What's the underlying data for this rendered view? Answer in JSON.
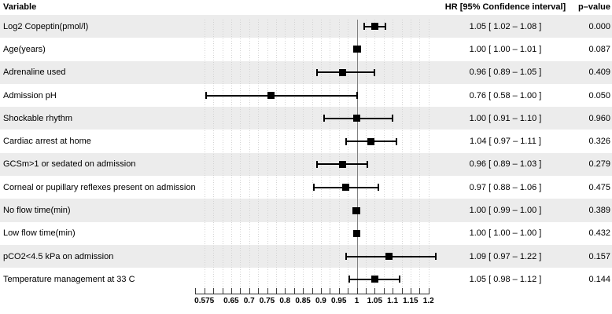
{
  "colors": {
    "band": "#ececec",
    "grid": "#d3d3d3",
    "axis": "#2b2b2b",
    "reference_line": "#808080",
    "marker": "#000000"
  },
  "chart_data": {
    "type": "forest",
    "title": "",
    "columns": [
      "Variable",
      "HR [95% Confidence interval]",
      "p–value"
    ],
    "rows": [
      {
        "label": "Log2 Copeptin(pmol/l)",
        "hr": 1.05,
        "lo": 1.02,
        "hi": 1.08,
        "ci_text": "1.05 [ 1.02 – 1.08 ]",
        "p": "0.000"
      },
      {
        "label": "Age(years)",
        "hr": 1.0,
        "lo": 1.0,
        "hi": 1.01,
        "ci_text": "1.00 [ 1.00 – 1.01 ]",
        "p": "0.087"
      },
      {
        "label": "Adrenaline used",
        "hr": 0.96,
        "lo": 0.89,
        "hi": 1.05,
        "ci_text": "0.96 [ 0.89 – 1.05 ]",
        "p": "0.409"
      },
      {
        "label": "Admission pH",
        "hr": 0.76,
        "lo": 0.58,
        "hi": 1.0,
        "ci_text": "0.76 [ 0.58 – 1.00 ]",
        "p": "0.050"
      },
      {
        "label": "Shockable rhythm",
        "hr": 1.0,
        "lo": 0.91,
        "hi": 1.1,
        "ci_text": "1.00 [ 0.91 – 1.10 ]",
        "p": "0.960"
      },
      {
        "label": "Cardiac arrest at home",
        "hr": 1.04,
        "lo": 0.97,
        "hi": 1.11,
        "ci_text": "1.04 [ 0.97 – 1.11 ]",
        "p": "0.326"
      },
      {
        "label": "GCSm>1 or sedated on admission",
        "hr": 0.96,
        "lo": 0.89,
        "hi": 1.03,
        "ci_text": "0.96 [ 0.89 – 1.03 ]",
        "p": "0.279"
      },
      {
        "label": "Corneal or pupillary reflexes present on admission",
        "hr": 0.97,
        "lo": 0.88,
        "hi": 1.06,
        "ci_text": "0.97 [ 0.88 – 1.06 ]",
        "p": "0.475"
      },
      {
        "label": "No flow time(min)",
        "hr": 1.0,
        "lo": 0.99,
        "hi": 1.0,
        "ci_text": "1.00 [ 0.99 – 1.00 ]",
        "p": "0.389"
      },
      {
        "label": "Low flow time(min)",
        "hr": 1.0,
        "lo": 1.0,
        "hi": 1.0,
        "ci_text": "1.00 [ 1.00 – 1.00 ]",
        "p": "0.432"
      },
      {
        "label": "pCO2<4.5 kPa on admission",
        "hr": 1.09,
        "lo": 0.97,
        "hi": 1.22,
        "ci_text": "1.09 [ 0.97 – 1.22 ]",
        "p": "0.157"
      },
      {
        "label": "Temperature management at 33 C",
        "hr": 1.05,
        "lo": 0.98,
        "hi": 1.12,
        "ci_text": "1.05 [ 0.98 – 1.12 ]",
        "p": "0.144"
      }
    ],
    "axis": {
      "scale": "linear",
      "reference": 1,
      "min": 0.55,
      "max": 1.2,
      "minor_step": 0.025,
      "tick_labels": [
        "0.575",
        "0.65",
        "0.7",
        "0.75",
        "0.8",
        "0.85",
        "0.9",
        "0.95",
        "1",
        "1.05",
        "1.1",
        "1.15",
        "1.2"
      ],
      "grid": "dotted"
    }
  }
}
